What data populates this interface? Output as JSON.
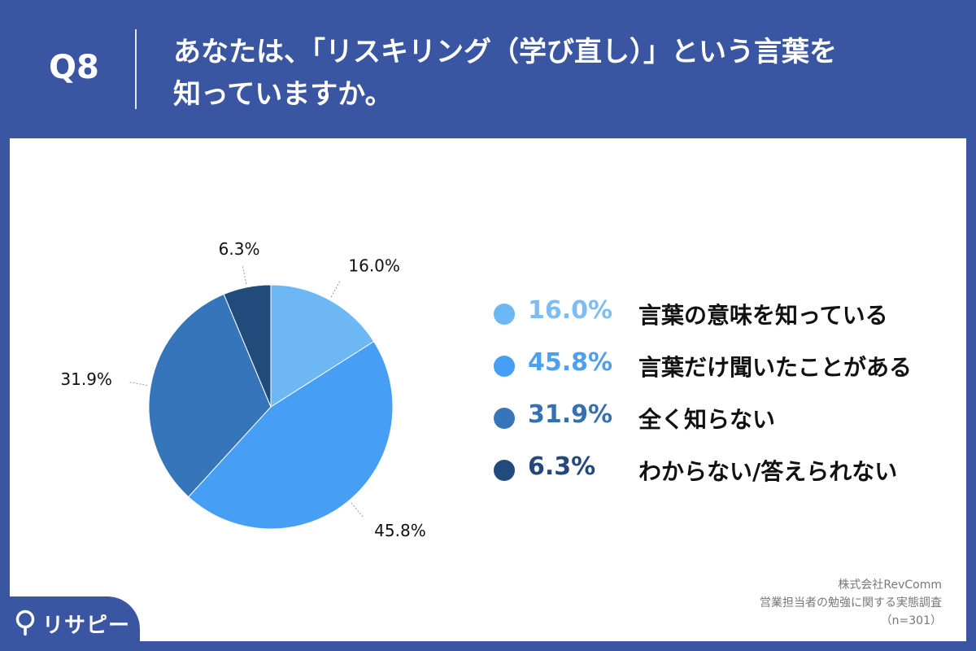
{
  "header": {
    "question_no": "Q8",
    "title_line1": "あなたは、「リスキリング（学び直し）」という言葉を",
    "title_line2": "知っていますか。"
  },
  "chart_data": {
    "type": "pie",
    "start_angle_deg": 0,
    "direction": "clockwise",
    "slices": [
      {
        "label": "言葉の意味を知っている",
        "value": 16.0,
        "display": "16.0%",
        "color": "#6db7f5"
      },
      {
        "label": "言葉だけ聞いたことがある",
        "value": 45.8,
        "display": "45.8%",
        "color": "#469ff5"
      },
      {
        "label": "全く知らない",
        "value": 31.9,
        "display": "31.9%",
        "color": "#3675ba"
      },
      {
        "label": "わからない/答えられない",
        "value": 6.3,
        "display": "6.3%",
        "color": "#204b7a"
      }
    ],
    "legend_placement": "right"
  },
  "legend_pct_colors": [
    "#7dbdf3",
    "#4f9ff0",
    "#3470b2",
    "#24487a"
  ],
  "source": {
    "line1": "株式会社RevComm",
    "line2": "営業担当者の勉強に関する実態調査",
    "line3": "（n=301）"
  },
  "logo": {
    "text": "リサピー"
  },
  "colors": {
    "background": "#3a56a3",
    "panel": "#ffffff"
  }
}
